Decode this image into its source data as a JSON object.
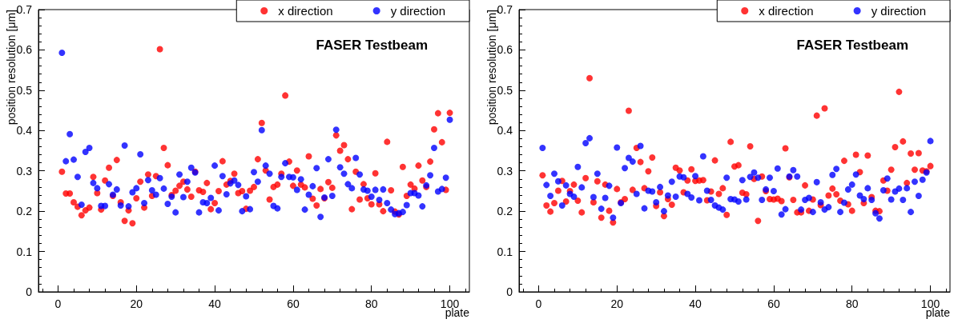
{
  "chart_data": [
    {
      "type": "scatter",
      "xlabel": "plate",
      "ylabel": "position resolution [μm]",
      "annotations": [
        "FASER Testbeam"
      ],
      "x": [
        1,
        2,
        3,
        4,
        5,
        6,
        7,
        8,
        9,
        10,
        11,
        12,
        13,
        14,
        15,
        16,
        17,
        18,
        19,
        20,
        21,
        22,
        23,
        24,
        25,
        26,
        27,
        28,
        29,
        30,
        31,
        32,
        33,
        34,
        35,
        36,
        37,
        38,
        39,
        40,
        41,
        42,
        43,
        44,
        45,
        46,
        47,
        48,
        49,
        50,
        51,
        52,
        53,
        54,
        55,
        56,
        57,
        58,
        59,
        60,
        61,
        62,
        63,
        64,
        65,
        66,
        67,
        68,
        69,
        70,
        71,
        72,
        73,
        74,
        75,
        76,
        77,
        78,
        79,
        80,
        81,
        82,
        83,
        84,
        85,
        86,
        87,
        88,
        89,
        90,
        91,
        92,
        93,
        94,
        95,
        96,
        97,
        98,
        99,
        100
      ],
      "series": [
        {
          "name": "x direction",
          "color": "#ff0000",
          "values": [
            0.298,
            0.244,
            0.244,
            0.222,
            0.211,
            0.19,
            0.202,
            0.209,
            0.285,
            0.245,
            0.204,
            0.276,
            0.308,
            0.238,
            0.327,
            0.222,
            0.176,
            0.202,
            0.17,
            0.232,
            0.273,
            0.209,
            0.291,
            0.238,
            0.287,
            0.602,
            0.357,
            0.314,
            0.24,
            0.251,
            0.263,
            0.273,
            0.254,
            0.236,
            0.298,
            0.252,
            0.248,
            0.27,
            0.205,
            0.22,
            0.25,
            0.324,
            0.266,
            0.275,
            0.293,
            0.245,
            0.25,
            0.206,
            0.251,
            0.26,
            0.329,
            0.419,
            0.301,
            0.229,
            0.26,
            0.266,
            0.293,
            0.487,
            0.323,
            0.263,
            0.301,
            0.266,
            0.259,
            0.336,
            0.231,
            0.214,
            0.255,
            0.232,
            0.272,
            0.258,
            0.388,
            0.35,
            0.364,
            0.329,
            0.205,
            0.298,
            0.229,
            0.267,
            0.232,
            0.217,
            0.294,
            0.217,
            0.2,
            0.372,
            0.252,
            0.199,
            0.192,
            0.31,
            0.238,
            0.266,
            0.256,
            0.313,
            0.276,
            0.26,
            0.323,
            0.403,
            0.443,
            0.371,
            0.253,
            0.444
          ]
        },
        {
          "name": "y direction",
          "color": "#0000ff",
          "values": [
            0.593,
            0.324,
            0.391,
            0.328,
            0.285,
            0.216,
            0.347,
            0.357,
            0.27,
            0.257,
            0.213,
            0.213,
            0.267,
            0.241,
            0.254,
            0.214,
            0.363,
            0.212,
            0.247,
            0.257,
            0.341,
            0.22,
            0.277,
            0.252,
            0.241,
            0.282,
            0.256,
            0.218,
            0.236,
            0.197,
            0.291,
            0.235,
            0.273,
            0.308,
            0.296,
            0.197,
            0.222,
            0.22,
            0.233,
            0.313,
            0.202,
            0.287,
            0.242,
            0.269,
            0.276,
            0.265,
            0.2,
            0.237,
            0.205,
            0.297,
            0.273,
            0.401,
            0.313,
            0.293,
            0.213,
            0.207,
            0.285,
            0.319,
            0.285,
            0.284,
            0.253,
            0.279,
            0.204,
            0.241,
            0.262,
            0.307,
            0.186,
            0.234,
            0.329,
            0.238,
            0.402,
            0.309,
            0.293,
            0.267,
            0.257,
            0.332,
            0.291,
            0.254,
            0.251,
            0.236,
            0.253,
            0.228,
            0.254,
            0.22,
            0.204,
            0.193,
            0.195,
            0.198,
            0.215,
            0.245,
            0.245,
            0.239,
            0.212,
            0.264,
            0.289,
            0.357,
            0.249,
            0.255,
            0.283,
            0.427
          ]
        }
      ],
      "xlim": [
        -5,
        105
      ],
      "xticks": [
        0,
        20,
        40,
        60,
        80,
        100
      ],
      "ylim": [
        0,
        0.7
      ],
      "yticks": [
        0,
        0.1,
        0.2,
        0.3,
        0.4,
        0.5,
        0.6,
        0.7
      ],
      "grid": false,
      "legend": "top right",
      "marker": "circle"
    },
    {
      "type": "scatter",
      "xlabel": "plate",
      "ylabel": "position resolution [μm]",
      "annotations": [
        "FASER Testbeam"
      ],
      "x": [
        1,
        2,
        3,
        4,
        5,
        6,
        7,
        8,
        9,
        10,
        11,
        12,
        13,
        14,
        15,
        16,
        17,
        18,
        19,
        20,
        21,
        22,
        23,
        24,
        25,
        26,
        27,
        28,
        29,
        30,
        31,
        32,
        33,
        34,
        35,
        36,
        37,
        38,
        39,
        40,
        41,
        42,
        43,
        44,
        45,
        46,
        47,
        48,
        49,
        50,
        51,
        52,
        53,
        54,
        55,
        56,
        57,
        58,
        59,
        60,
        61,
        62,
        63,
        64,
        65,
        66,
        67,
        68,
        69,
        70,
        71,
        72,
        73,
        74,
        75,
        76,
        77,
        78,
        79,
        80,
        81,
        82,
        83,
        84,
        85,
        86,
        87,
        88,
        89,
        90,
        91,
        92,
        93,
        94,
        95,
        96,
        97,
        98,
        99,
        100
      ],
      "series": [
        {
          "name": "x direction",
          "color": "#ff0000",
          "values": [
            0.289,
            0.214,
            0.199,
            0.22,
            0.251,
            0.275,
            0.224,
            0.25,
            0.266,
            0.226,
            0.197,
            0.282,
            0.53,
            0.222,
            0.274,
            0.184,
            0.266,
            0.201,
            0.172,
            0.255,
            0.222,
            0.23,
            0.449,
            0.253,
            0.357,
            0.322,
            0.257,
            0.299,
            0.333,
            0.213,
            0.247,
            0.188,
            0.23,
            0.216,
            0.308,
            0.301,
            0.247,
            0.276,
            0.304,
            0.275,
            0.276,
            0.277,
            0.227,
            0.249,
            0.326,
            0.243,
            0.257,
            0.191,
            0.372,
            0.311,
            0.314,
            0.246,
            0.242,
            0.361,
            0.28,
            0.176,
            0.286,
            0.25,
            0.23,
            0.229,
            0.231,
            0.225,
            0.356,
            0.284,
            0.228,
            0.197,
            0.197,
            0.264,
            0.201,
            0.229,
            0.437,
            0.215,
            0.455,
            0.239,
            0.256,
            0.242,
            0.226,
            0.325,
            0.217,
            0.201,
            0.34,
            0.297,
            0.22,
            0.338,
            0.235,
            0.201,
            0.2,
            0.276,
            0.251,
            0.303,
            0.359,
            0.496,
            0.373,
            0.27,
            0.343,
            0.303,
            0.344,
            0.301,
            0.299,
            0.312
          ]
        },
        {
          "name": "y direction",
          "color": "#0000ff",
          "values": [
            0.357,
            0.265,
            0.238,
            0.293,
            0.274,
            0.214,
            0.264,
            0.243,
            0.236,
            0.31,
            0.259,
            0.369,
            0.381,
            0.235,
            0.293,
            0.206,
            0.233,
            0.263,
            0.184,
            0.358,
            0.22,
            0.307,
            0.332,
            0.323,
            0.243,
            0.362,
            0.207,
            0.251,
            0.249,
            0.222,
            0.26,
            0.2,
            0.239,
            0.273,
            0.236,
            0.286,
            0.284,
            0.243,
            0.234,
            0.287,
            0.227,
            0.336,
            0.251,
            0.228,
            0.214,
            0.209,
            0.204,
            0.283,
            0.23,
            0.229,
            0.224,
            0.277,
            0.229,
            0.285,
            0.296,
            0.283,
            0.228,
            0.254,
            0.283,
            0.25,
            0.306,
            0.192,
            0.205,
            0.286,
            0.302,
            0.286,
            0.204,
            0.228,
            0.233,
            0.198,
            0.272,
            0.222,
            0.204,
            0.21,
            0.29,
            0.305,
            0.198,
            0.221,
            0.254,
            0.266,
            0.291,
            0.239,
            0.23,
            0.257,
            0.228,
            0.195,
            0.182,
            0.252,
            0.281,
            0.229,
            0.249,
            0.256,
            0.228,
            0.257,
            0.198,
            0.273,
            0.238,
            0.278,
            0.296,
            0.374
          ]
        }
      ],
      "xlim": [
        -5,
        105
      ],
      "xticks": [
        0,
        20,
        40,
        60,
        80,
        100
      ],
      "ylim": [
        0,
        0.7
      ],
      "yticks": [
        0,
        0.1,
        0.2,
        0.3,
        0.4,
        0.5,
        0.6,
        0.7
      ],
      "grid": false,
      "legend": "top right",
      "marker": "circle"
    }
  ]
}
